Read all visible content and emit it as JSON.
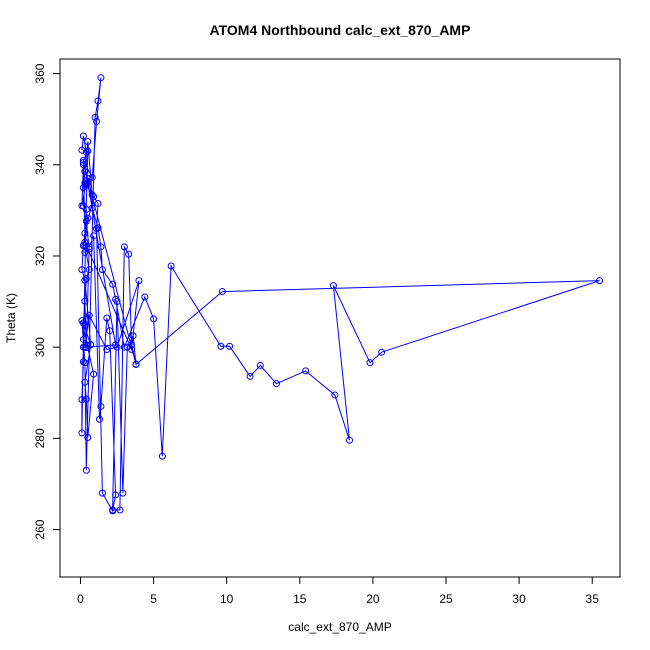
{
  "chart_data": {
    "type": "scatter",
    "title": "ATOM4 Northbound calc_ext_870_AMP",
    "xlabel": "calc_ext_870_AMP",
    "ylabel": "Theta (K)",
    "xlim": [
      -1.4,
      36.9
    ],
    "ylim": [
      249.6,
      363.2
    ],
    "xticks": [
      0,
      5,
      10,
      15,
      20,
      25,
      30,
      35
    ],
    "yticks": [
      260,
      280,
      300,
      320,
      340,
      360
    ],
    "grid": false,
    "points_connected": true,
    "series": [
      {
        "color": "#0000ff",
        "x": [
          0.1,
          0.2,
          0.4,
          0.3,
          0.2,
          0.5,
          0.8,
          0.3,
          0.2,
          0.5,
          0.3,
          0.6,
          0.4,
          0.2,
          0.7,
          0.3,
          0.4,
          0.5,
          0.9,
          0.1,
          0.3,
          0.4,
          1.0,
          1.2,
          1.4,
          1.1,
          0.8,
          0.2,
          0.5,
          0.3,
          0.6,
          0.4,
          0.2,
          0.1,
          0.3,
          0.7,
          0.2,
          0.1,
          0.1,
          0.2,
          0.3,
          0.4,
          0.6,
          0.9,
          1.3,
          1.4,
          1.8,
          2.0,
          2.4,
          2.2,
          2.7,
          3.0,
          3.3,
          3.5,
          3.8,
          3.6,
          3.2,
          2.9,
          2.5,
          2.2,
          1.5,
          1.1,
          1.2,
          0.9,
          0.3,
          0.2,
          0.1,
          0.4,
          0.6,
          0.8,
          1.2,
          1.4,
          1.5,
          2.2,
          2.4,
          3.0,
          4.4,
          5.0,
          5.6,
          6.2,
          9.6,
          10.2,
          11.6,
          12.3,
          13.4,
          15.4,
          17.4,
          18.4,
          17.3,
          19.8,
          20.6,
          35.5,
          9.7,
          3.8,
          0.2,
          0.5,
          2.4,
          0.3,
          0.6,
          1.8,
          2.5,
          4.0,
          3.5,
          0.3,
          0.4,
          0.2
        ],
        "y": [
          343.2,
          346.3,
          342.8,
          338.5,
          335.0,
          345.1,
          333.4,
          336.0,
          331.0,
          328.3,
          322.3,
          317.0,
          315.0,
          305.3,
          300.5,
          292.3,
          288.6,
          280.2,
          294.1,
          305.8,
          296.6,
          273.0,
          350.4,
          354.0,
          359.1,
          349.5,
          337.2,
          341.0,
          343.0,
          320.8,
          321.5,
          327.6,
          322.3,
          317.0,
          314.7,
          300.6,
          301.7,
          281.2,
          288.5,
          296.8,
          310.1,
          299.9,
          322.0,
          324.4,
          284.2,
          287.0,
          306.4,
          303.6,
          267.6,
          264.3,
          264.3,
          322.0,
          320.4,
          300.5,
          296.3,
          302.5,
          300.0,
          268.0,
          310.0,
          264.1,
          268.0,
          326.0,
          331.5,
          333.0,
          325.0,
          340.0,
          331.0,
          336.5,
          337.0,
          330.5,
          326.2,
          322.0,
          317.0,
          313.8,
          310.5,
          300.0,
          311.0,
          306.2,
          276.1,
          317.8,
          300.2,
          300.2,
          293.6,
          296.0,
          292.0,
          294.8,
          289.5,
          279.6,
          313.5,
          296.6,
          298.9,
          314.6,
          312.2,
          296.2,
          340.5,
          336.0,
          300.5,
          300.0,
          307.0,
          299.5,
          300.0,
          314.6,
          299.5,
          323.0,
          330.2,
          300.0
        ]
      }
    ]
  }
}
